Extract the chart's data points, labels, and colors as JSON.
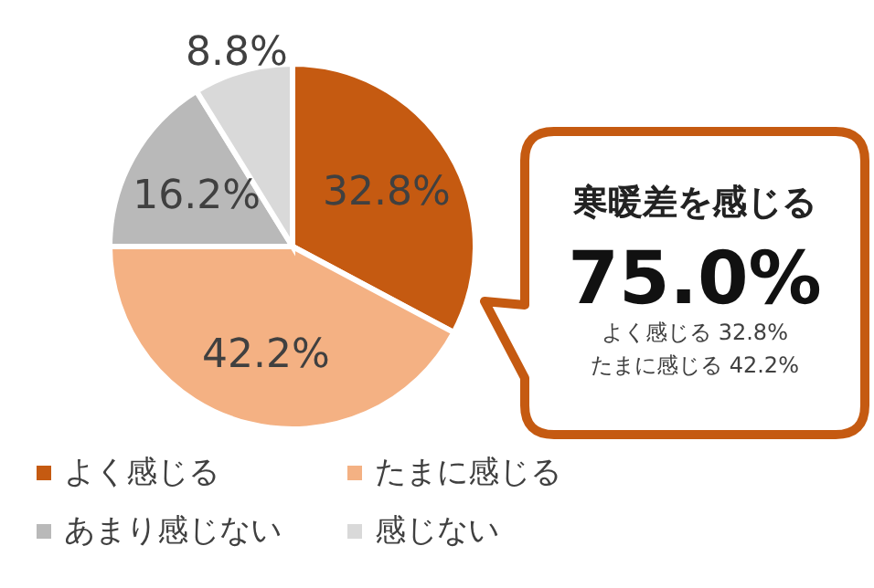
{
  "chart_data": {
    "type": "pie",
    "categories": [
      "よく感じる",
      "たまに感じる",
      "あまり感じない",
      "感じない"
    ],
    "values": [
      32.8,
      42.2,
      16.2,
      8.8
    ],
    "colors": [
      "#c55a11",
      "#f4b183",
      "#b9b9b9",
      "#d9d9d9"
    ],
    "value_labels": [
      "32.8%",
      "42.2%",
      "16.2%",
      "8.8%"
    ],
    "legend": "bottom",
    "annotations": [
      "寒暖差を感じる",
      "75.0%",
      "よく感じる 32.8%",
      "たまに感じる 42.2%"
    ]
  }
}
